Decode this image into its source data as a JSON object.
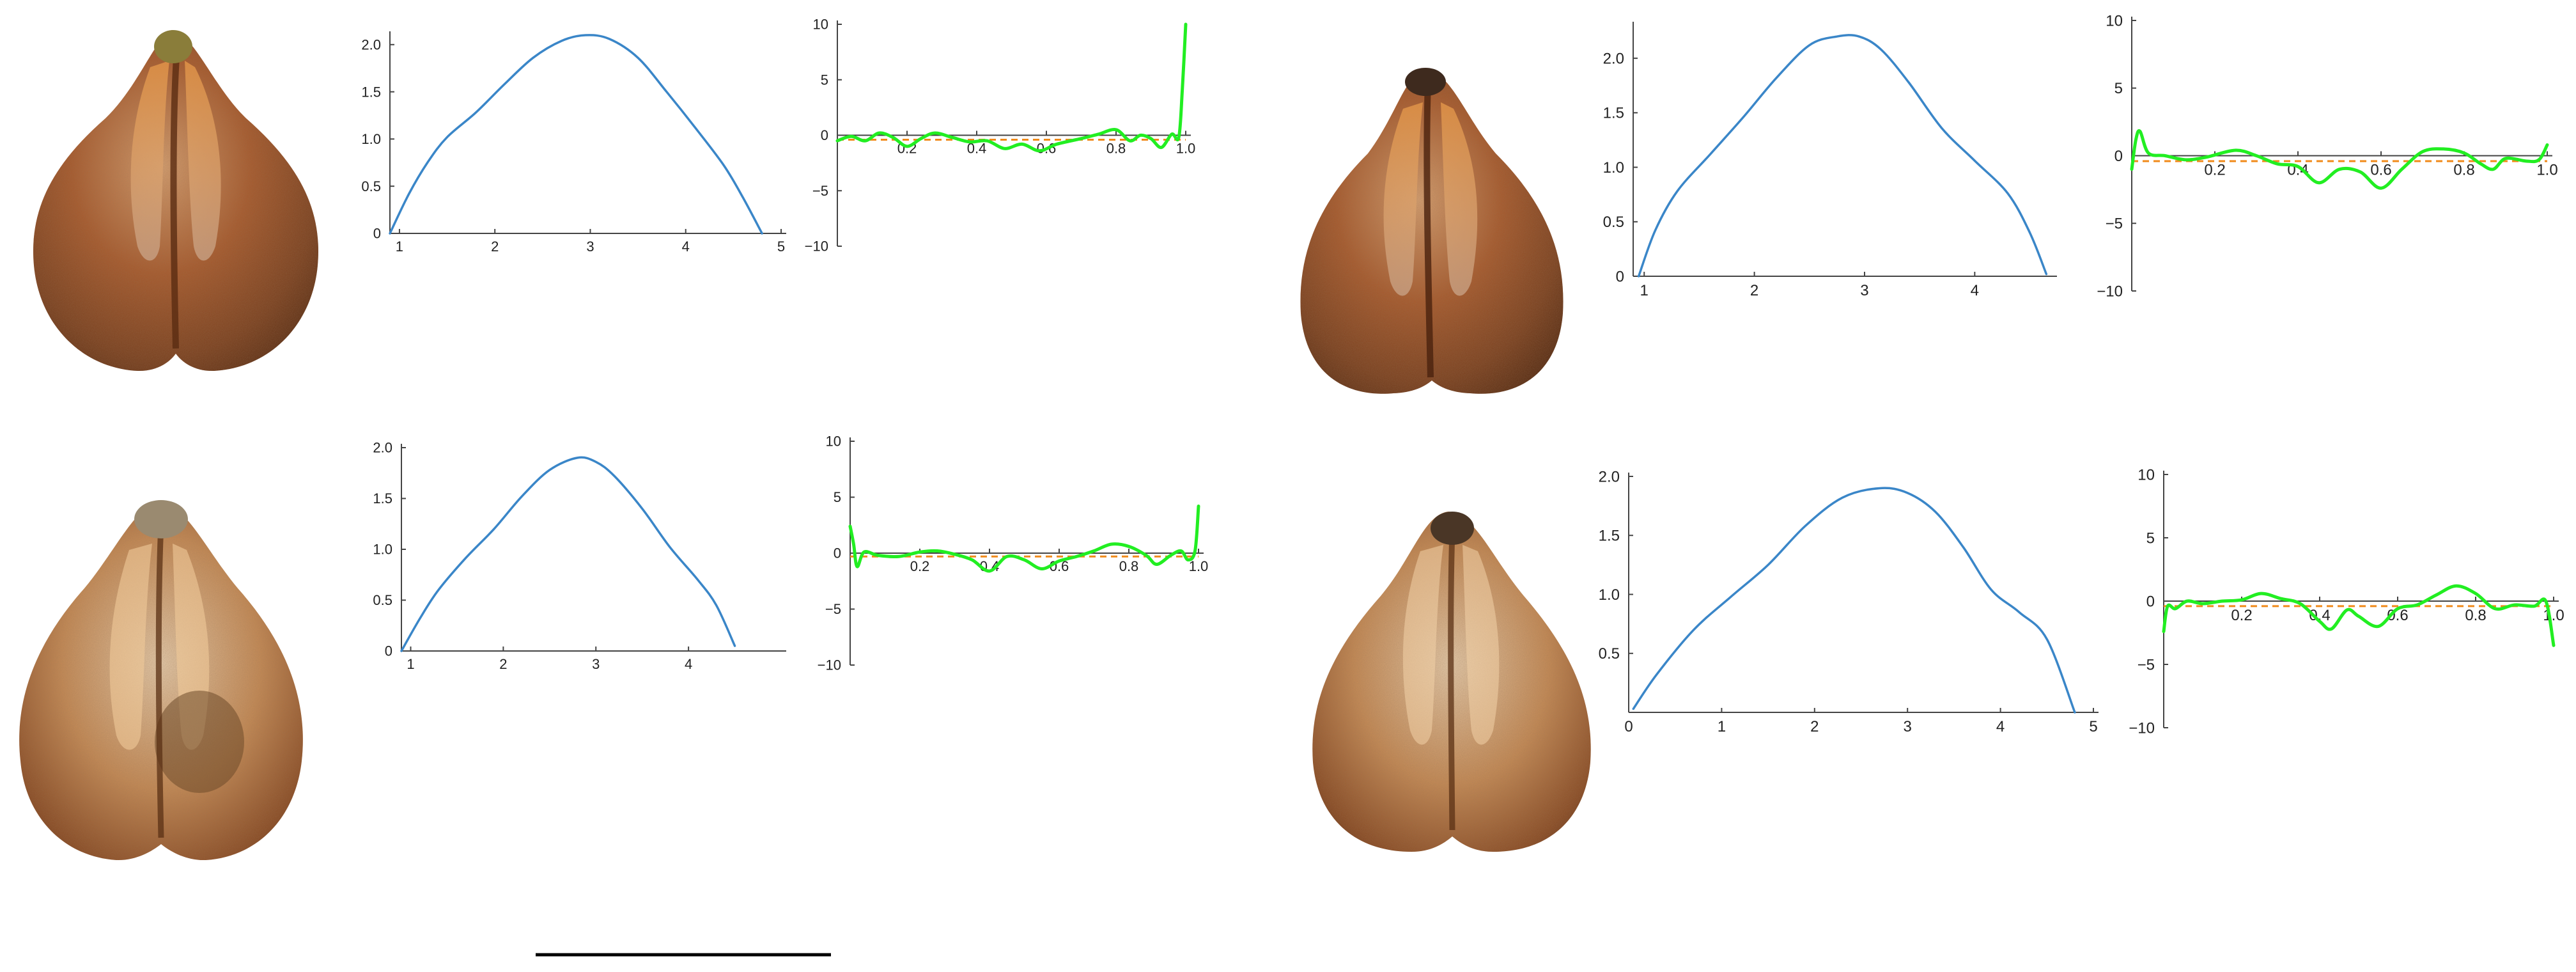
{
  "colors": {
    "profile_curve": "#3a86c8",
    "residual_curve": "#22ee22",
    "baseline": "#f08a1a",
    "axis": "#444444",
    "seed_dark": "#6e3a1a",
    "seed_mid": "#a8582a",
    "seed_light": "#d49a5a",
    "seed_pale": "#e9cfae",
    "scale_bar": "#000000"
  },
  "panels": [
    {
      "seed": "seed-photo-1",
      "profile": 0,
      "residual": 0
    },
    {
      "seed": "seed-photo-2",
      "profile": 1,
      "residual": 1
    },
    {
      "seed": "seed-photo-3",
      "profile": 2,
      "residual": 2
    },
    {
      "seed": "seed-photo-4",
      "profile": 3,
      "residual": 3
    }
  ],
  "chart_data": [
    {
      "id": "profile-1",
      "type": "line",
      "xlim": [
        0.9,
        5
      ],
      "ylim": [
        0,
        2.1
      ],
      "x_ticks": [
        "1",
        "2",
        "3",
        "4",
        "5"
      ],
      "x_tick_values": [
        1,
        2,
        3,
        4,
        5
      ],
      "y_ticks": [
        "0",
        "0.5",
        "1.0",
        "1.5",
        "2.0"
      ],
      "y_tick_values": [
        0,
        0.5,
        1.0,
        1.5,
        2.0
      ],
      "series": [
        {
          "values": [
            [
              0.9,
              0
            ],
            [
              1.1,
              0.42
            ],
            [
              1.3,
              0.76
            ],
            [
              1.5,
              1.02
            ],
            [
              1.8,
              1.28
            ],
            [
              2.1,
              1.58
            ],
            [
              2.4,
              1.86
            ],
            [
              2.7,
              2.04
            ],
            [
              2.95,
              2.1
            ],
            [
              3.2,
              2.06
            ],
            [
              3.5,
              1.86
            ],
            [
              3.8,
              1.5
            ],
            [
              4.1,
              1.12
            ],
            [
              4.4,
              0.72
            ],
            [
              4.6,
              0.38
            ],
            [
              4.8,
              0.0
            ]
          ]
        }
      ]
    },
    {
      "id": "residual-1",
      "type": "line",
      "xlim": [
        0,
        1
      ],
      "ylim": [
        -10,
        10
      ],
      "x_ticks": [
        "0.2",
        "0.4",
        "0.6",
        "0.8",
        "1.0"
      ],
      "x_tick_values": [
        0.2,
        0.4,
        0.6,
        0.8,
        1.0
      ],
      "y_ticks": [
        "10",
        "5",
        "0",
        "−5",
        "−10"
      ],
      "y_tick_values": [
        10,
        5,
        0,
        -5,
        -10
      ],
      "baseline": -0.4,
      "series": [
        {
          "values": [
            [
              0,
              -0.5
            ],
            [
              0.04,
              -0.1
            ],
            [
              0.08,
              -0.5
            ],
            [
              0.12,
              0.2
            ],
            [
              0.16,
              -0.2
            ],
            [
              0.2,
              -1.0
            ],
            [
              0.24,
              -0.3
            ],
            [
              0.28,
              0.2
            ],
            [
              0.33,
              -0.2
            ],
            [
              0.38,
              -0.6
            ],
            [
              0.43,
              -0.5
            ],
            [
              0.48,
              -1.2
            ],
            [
              0.53,
              -0.8
            ],
            [
              0.58,
              -1.4
            ],
            [
              0.63,
              -0.8
            ],
            [
              0.7,
              -0.3
            ],
            [
              0.75,
              0.1
            ],
            [
              0.8,
              0.5
            ],
            [
              0.84,
              -0.5
            ],
            [
              0.87,
              0.0
            ],
            [
              0.9,
              -0.3
            ],
            [
              0.93,
              -1.1
            ],
            [
              0.96,
              0.1
            ],
            [
              0.98,
              -0.2
            ],
            [
              0.99,
              4.0
            ],
            [
              1.0,
              10.0
            ]
          ]
        }
      ]
    },
    {
      "id": "profile-2",
      "type": "line",
      "xlim": [
        0.9,
        5
      ],
      "ylim": [
        0,
        2.0
      ],
      "x_ticks": [
        "1",
        "2",
        "3",
        "4"
      ],
      "x_tick_values": [
        1,
        2,
        3,
        4
      ],
      "y_ticks": [
        "0",
        "0.5",
        "1.0",
        "1.5",
        "2.0"
      ],
      "y_tick_values": [
        0,
        0.5,
        1.0,
        1.5,
        2.0
      ],
      "series": [
        {
          "values": [
            [
              0.9,
              0
            ],
            [
              1.1,
              0.32
            ],
            [
              1.3,
              0.6
            ],
            [
              1.6,
              0.92
            ],
            [
              1.9,
              1.2
            ],
            [
              2.2,
              1.52
            ],
            [
              2.5,
              1.78
            ],
            [
              2.8,
              1.9
            ],
            [
              3.0,
              1.86
            ],
            [
              3.2,
              1.72
            ],
            [
              3.5,
              1.4
            ],
            [
              3.8,
              1.02
            ],
            [
              4.1,
              0.7
            ],
            [
              4.3,
              0.45
            ],
            [
              4.5,
              0.05
            ]
          ]
        }
      ]
    },
    {
      "id": "residual-2",
      "type": "line",
      "xlim": [
        0,
        1
      ],
      "ylim": [
        -10,
        10
      ],
      "x_ticks": [
        "0.2",
        "0.4",
        "0.6",
        "0.8",
        "1.0"
      ],
      "x_tick_values": [
        0.2,
        0.4,
        0.6,
        0.8,
        1.0
      ],
      "y_ticks": [
        "10",
        "5",
        "0",
        "−5",
        "−10"
      ],
      "y_tick_values": [
        10,
        5,
        0,
        -5,
        -10
      ],
      "baseline": -0.3,
      "series": [
        {
          "values": [
            [
              0,
              2.4
            ],
            [
              0.01,
              0.8
            ],
            [
              0.02,
              -1.2
            ],
            [
              0.04,
              0.1
            ],
            [
              0.08,
              -0.2
            ],
            [
              0.14,
              -0.3
            ],
            [
              0.2,
              0.1
            ],
            [
              0.25,
              0.2
            ],
            [
              0.3,
              -0.1
            ],
            [
              0.35,
              -0.6
            ],
            [
              0.4,
              -1.6
            ],
            [
              0.45,
              -0.3
            ],
            [
              0.5,
              -0.6
            ],
            [
              0.55,
              -1.4
            ],
            [
              0.6,
              -0.7
            ],
            [
              0.65,
              -0.3
            ],
            [
              0.7,
              0.2
            ],
            [
              0.75,
              0.8
            ],
            [
              0.8,
              0.6
            ],
            [
              0.85,
              -0.2
            ],
            [
              0.88,
              -1.0
            ],
            [
              0.92,
              -0.2
            ],
            [
              0.95,
              0.2
            ],
            [
              0.97,
              -0.6
            ],
            [
              0.99,
              0.2
            ],
            [
              1.0,
              4.2
            ]
          ]
        }
      ]
    },
    {
      "id": "profile-3",
      "type": "line",
      "xlim": [
        0.9,
        4.7
      ],
      "ylim": [
        0,
        2.3
      ],
      "x_ticks": [
        "1",
        "2",
        "3",
        "4"
      ],
      "x_tick_values": [
        1,
        2,
        3,
        4
      ],
      "y_ticks": [
        "0",
        "0.5",
        "1.0",
        "1.5",
        "2.0"
      ],
      "y_tick_values": [
        0,
        0.5,
        1.0,
        1.5,
        2.0
      ],
      "series": [
        {
          "values": [
            [
              0.95,
              0
            ],
            [
              1.1,
              0.42
            ],
            [
              1.3,
              0.78
            ],
            [
              1.6,
              1.12
            ],
            [
              1.9,
              1.46
            ],
            [
              2.2,
              1.82
            ],
            [
              2.5,
              2.12
            ],
            [
              2.75,
              2.2
            ],
            [
              2.95,
              2.2
            ],
            [
              3.15,
              2.08
            ],
            [
              3.4,
              1.78
            ],
            [
              3.7,
              1.36
            ],
            [
              4.0,
              1.06
            ],
            [
              4.3,
              0.76
            ],
            [
              4.5,
              0.4
            ],
            [
              4.65,
              0.02
            ]
          ]
        }
      ]
    },
    {
      "id": "residual-3",
      "type": "line",
      "xlim": [
        0,
        1
      ],
      "ylim": [
        -10,
        10
      ],
      "x_ticks": [
        "0.2",
        "0.4",
        "0.6",
        "0.8",
        "1.0"
      ],
      "x_tick_values": [
        0.2,
        0.4,
        0.6,
        0.8,
        1.0
      ],
      "y_ticks": [
        "10",
        "5",
        "0",
        "−5",
        "−10"
      ],
      "y_tick_values": [
        10,
        5,
        0,
        -5,
        -10
      ],
      "baseline": -0.4,
      "series": [
        {
          "values": [
            [
              0,
              -1.0
            ],
            [
              0.01,
              1.2
            ],
            [
              0.02,
              1.8
            ],
            [
              0.04,
              0.2
            ],
            [
              0.08,
              0.0
            ],
            [
              0.13,
              -0.3
            ],
            [
              0.18,
              -0.1
            ],
            [
              0.25,
              0.4
            ],
            [
              0.3,
              0.0
            ],
            [
              0.35,
              -0.6
            ],
            [
              0.4,
              -0.8
            ],
            [
              0.45,
              -2.0
            ],
            [
              0.5,
              -1.0
            ],
            [
              0.55,
              -1.2
            ],
            [
              0.6,
              -2.4
            ],
            [
              0.65,
              -1.0
            ],
            [
              0.7,
              0.3
            ],
            [
              0.75,
              0.5
            ],
            [
              0.8,
              0.2
            ],
            [
              0.84,
              -0.6
            ],
            [
              0.87,
              -1.0
            ],
            [
              0.9,
              -0.2
            ],
            [
              0.95,
              -0.4
            ],
            [
              0.98,
              -0.3
            ],
            [
              1.0,
              0.8
            ]
          ]
        }
      ]
    },
    {
      "id": "profile-4",
      "type": "line",
      "xlim": [
        0,
        5
      ],
      "ylim": [
        0,
        2.0
      ],
      "x_ticks": [
        "0",
        "1",
        "2",
        "3",
        "4",
        "5"
      ],
      "x_tick_values": [
        0,
        1,
        2,
        3,
        4,
        5
      ],
      "y_ticks": [
        "0.5",
        "1.0",
        "1.5",
        "2.0"
      ],
      "y_tick_values": [
        0.5,
        1.0,
        1.5,
        2.0
      ],
      "series": [
        {
          "values": [
            [
              0.05,
              0.03
            ],
            [
              0.3,
              0.32
            ],
            [
              0.7,
              0.7
            ],
            [
              1.1,
              0.98
            ],
            [
              1.5,
              1.25
            ],
            [
              1.9,
              1.58
            ],
            [
              2.3,
              1.82
            ],
            [
              2.7,
              1.9
            ],
            [
              3.0,
              1.86
            ],
            [
              3.3,
              1.7
            ],
            [
              3.6,
              1.4
            ],
            [
              3.9,
              1.04
            ],
            [
              4.2,
              0.85
            ],
            [
              4.5,
              0.62
            ],
            [
              4.8,
              0.0
            ]
          ]
        }
      ]
    },
    {
      "id": "residual-4",
      "type": "line",
      "xlim": [
        0,
        1
      ],
      "ylim": [
        -10,
        10
      ],
      "x_ticks": [
        "0.2",
        "0.4",
        "0.6",
        "0.8",
        "1.0"
      ],
      "x_tick_values": [
        0.2,
        0.4,
        0.6,
        0.8,
        1.0
      ],
      "y_ticks": [
        "10",
        "5",
        "0",
        "−5",
        "−10"
      ],
      "y_tick_values": [
        10,
        5,
        0,
        -5,
        -10
      ],
      "baseline": -0.4,
      "series": [
        {
          "values": [
            [
              0,
              -2.4
            ],
            [
              0.01,
              -0.4
            ],
            [
              0.03,
              -0.6
            ],
            [
              0.06,
              0.0
            ],
            [
              0.1,
              -0.2
            ],
            [
              0.15,
              0.0
            ],
            [
              0.2,
              0.1
            ],
            [
              0.25,
              0.6
            ],
            [
              0.3,
              0.2
            ],
            [
              0.35,
              -0.2
            ],
            [
              0.4,
              -1.6
            ],
            [
              0.43,
              -2.2
            ],
            [
              0.47,
              -0.7
            ],
            [
              0.5,
              -1.2
            ],
            [
              0.55,
              -2.0
            ],
            [
              0.6,
              -0.6
            ],
            [
              0.65,
              -0.3
            ],
            [
              0.7,
              0.5
            ],
            [
              0.75,
              1.2
            ],
            [
              0.8,
              0.6
            ],
            [
              0.85,
              -0.6
            ],
            [
              0.9,
              -0.3
            ],
            [
              0.95,
              -0.4
            ],
            [
              0.98,
              0.0
            ],
            [
              1.0,
              -3.5
            ]
          ]
        }
      ]
    }
  ]
}
